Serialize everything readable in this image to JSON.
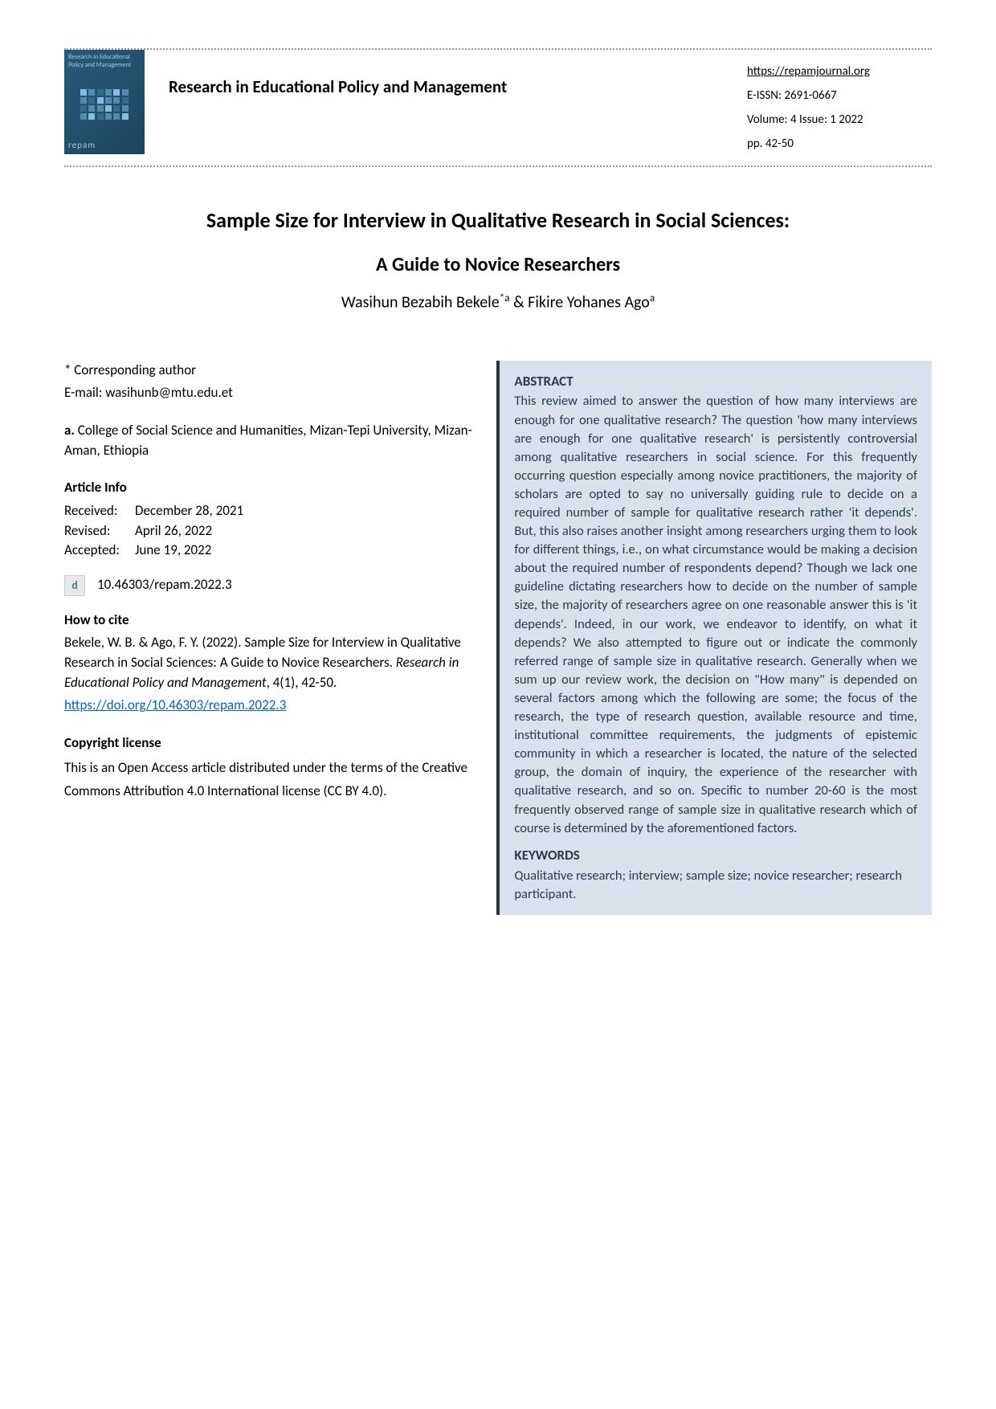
{
  "header": {
    "logo_top": "Research in Educational Policy and Management",
    "logo_bottom": "repam",
    "journal_title": "Research in Educational Policy and Management",
    "url": "https://repamjournal.org",
    "eissn_label": "E-ISSN: 2691-0667",
    "volume_issue": "Volume: 4  Issue: 1   2022",
    "pages": "pp. 42-50"
  },
  "article": {
    "title": "Sample Size for Interview in Qualitative Research in Social Sciences:",
    "subtitle": "A Guide to Novice Researchers",
    "authors": "Wasihun Bezabih Bekele",
    "author_sup1": "*a",
    "authors2": " & Fikire Yohanes Ago",
    "author_sup2": "a"
  },
  "left": {
    "corresponding_label": "* Corresponding author",
    "email_label": "E-mail:  wasihunb@mtu.edu.et",
    "affiliation_marker": "a.",
    "affiliation": " College of Social Science and Humanities, Mizan-Tepi University, Mizan-Aman, Ethiopia",
    "article_info_heading": "Article Info",
    "received_label": "Received:",
    "received_date": "December 28, 2021",
    "revised_label": "Revised:",
    "revised_date": "April 26, 2022",
    "accepted_label": "Accepted:",
    "accepted_date": "June 19, 2022",
    "doi_icon": "d",
    "doi": "10.46303/repam.2022.3",
    "how_to_cite_heading": "How to cite",
    "citation_text1": "Bekele, W. B. & Ago, F. Y. (2022). Sample Size for Interview in Qualitative Research in Social Sciences: A Guide to Novice Researchers. ",
    "citation_journal": "Research in Educational Policy and Management",
    "citation_text2": ", 4(1), 42-50.",
    "citation_link": "https://doi.org/10.46303/repam.2022.3",
    "copyright_heading": "Copyright license",
    "copyright_text": "This is an Open Access article distributed under the terms of the Creative Commons Attribution 4.0 International license (CC BY 4.0)."
  },
  "right": {
    "abstract_heading": "ABSTRACT",
    "abstract_text": "This review aimed to answer the question of how many interviews are enough for one qualitative research? The question 'how many interviews are enough for one qualitative research' is persistently controversial among qualitative researchers in social science. For this frequently occurring question especially among novice practitioners, the majority of scholars are opted to say no universally guiding rule to decide on a required number of sample for qualitative research rather 'it depends'. But, this also raises another insight among researchers urging them to look for different things, i.e., on what circumstance would be making a decision about the required number of respondents depend? Though we lack one guideline dictating researchers how to decide on the number of sample size, the majority of researchers agree on one reasonable answer this is 'it depends'. Indeed, in our work, we endeavor to identify, on what it depends? We also attempted to figure out or indicate the commonly referred range of sample size in qualitative research.  Generally when we sum up our review work, the decision on \"How many\" is depended on several factors among which the following are some; the focus of the research, the type of research question, available resource and time, institutional committee requirements, the judgments of epistemic community in which a researcher is located, the nature of the selected group, the domain of inquiry, the experience of the researcher with qualitative research, and so on. Specific to number 20-60 is the most frequently observed range of sample size in qualitative research which of course is determined by the aforementioned factors.",
    "keywords_heading": "KEYWORDS",
    "keywords_text": "Qualitative research; interview; sample size; novice researcher; research participant."
  }
}
